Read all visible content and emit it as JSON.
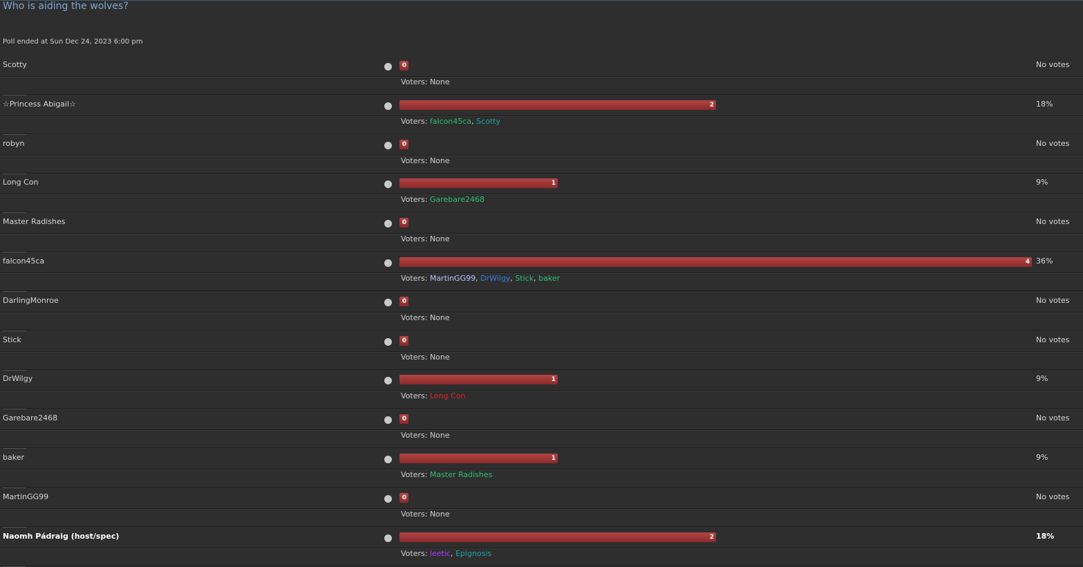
{
  "poll": {
    "title": "Who is aiding the wolves?",
    "ended_text": "Poll ended at Sun Dec 24, 2023 6:00 pm",
    "voters_label": "Voters:",
    "total_votes_max": 11,
    "options": [
      {
        "label": "Scotty",
        "count": "0",
        "fraction": 0,
        "percent": "No votes",
        "voters": [
          {
            "name": "None",
            "color": "#d0d0d0"
          }
        ]
      },
      {
        "label": "☆Princess Abigail☆",
        "count": "2",
        "fraction": 0.182,
        "percent": "18%",
        "voters": [
          {
            "name": "falcon45ca",
            "color": "#2fbf71"
          },
          {
            "name": "Scotty",
            "color": "#1fa3a3"
          }
        ]
      },
      {
        "label": "robyn",
        "count": "0",
        "fraction": 0,
        "percent": "No votes",
        "voters": [
          {
            "name": "None",
            "color": "#d0d0d0"
          }
        ]
      },
      {
        "label": "Long Con",
        "count": "1",
        "fraction": 0.091,
        "percent": "9%",
        "voters": [
          {
            "name": "Garebare2468",
            "color": "#2fbf71"
          }
        ]
      },
      {
        "label": "Master Radishes",
        "count": "0",
        "fraction": 0,
        "percent": "No votes",
        "voters": [
          {
            "name": "None",
            "color": "#d0d0d0"
          }
        ]
      },
      {
        "label": "falcon45ca",
        "count": "4",
        "fraction": 0.364,
        "percent": "36%",
        "voters": [
          {
            "name": "MartinGG99",
            "color": "#b8c4ff"
          },
          {
            "name": "DrWilgy",
            "color": "#3a7fe0"
          },
          {
            "name": "Stick",
            "color": "#2fbf71"
          },
          {
            "name": "baker",
            "color": "#2fbf71"
          }
        ]
      },
      {
        "label": "DarlingMonroe",
        "count": "0",
        "fraction": 0,
        "percent": "No votes",
        "voters": [
          {
            "name": "None",
            "color": "#d0d0d0"
          }
        ]
      },
      {
        "label": "Stick",
        "count": "0",
        "fraction": 0,
        "percent": "No votes",
        "voters": [
          {
            "name": "None",
            "color": "#d0d0d0"
          }
        ]
      },
      {
        "label": "DrWilgy",
        "count": "1",
        "fraction": 0.091,
        "percent": "9%",
        "voters": [
          {
            "name": "Long Con",
            "color": "#e02020"
          }
        ]
      },
      {
        "label": "Garebare2468",
        "count": "0",
        "fraction": 0,
        "percent": "No votes",
        "voters": [
          {
            "name": "None",
            "color": "#d0d0d0"
          }
        ]
      },
      {
        "label": "baker",
        "count": "1",
        "fraction": 0.091,
        "percent": "9%",
        "voters": [
          {
            "name": "Master Radishes",
            "color": "#2fbf71"
          }
        ]
      },
      {
        "label": "MartinGG99",
        "count": "0",
        "fraction": 0,
        "percent": "No votes",
        "voters": [
          {
            "name": "None",
            "color": "#d0d0d0"
          }
        ]
      },
      {
        "label": "Naomh Pádraig (host/spec)",
        "count": "2",
        "fraction": 0.182,
        "percent": "18%",
        "bold": true,
        "voters": [
          {
            "name": "leetic",
            "color": "#b03cff"
          },
          {
            "name": "Epignosis",
            "color": "#1fa3a3"
          }
        ]
      }
    ]
  }
}
